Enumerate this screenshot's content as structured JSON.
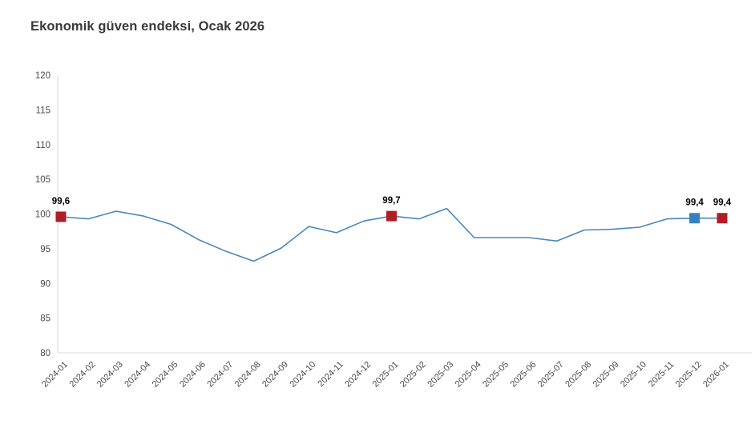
{
  "title": "Ekonomik güven endeksi, Ocak 2026",
  "chart_data": {
    "type": "line",
    "title": "Ekonomik güven endeksi, Ocak 2026",
    "x": [
      "2024-01",
      "2024-02",
      "2024-03",
      "2024-04",
      "2024-05",
      "2024-06",
      "2024-07",
      "2024-08",
      "2024-09",
      "2024-10",
      "2024-11",
      "2024-12",
      "2025-01",
      "2025-02",
      "2025-03",
      "2025-04",
      "2025-05",
      "2025-06",
      "2025-07",
      "2025-08",
      "2025-09",
      "2025-10",
      "2025-11",
      "2025-12",
      "2026-01"
    ],
    "series": [
      {
        "name": "Ekonomik güven endeksi",
        "values": [
          99.6,
          99.3,
          100.4,
          99.7,
          98.5,
          96.3,
          94.6,
          93.2,
          95.1,
          98.2,
          97.3,
          99.0,
          99.7,
          99.3,
          100.8,
          96.6,
          96.6,
          96.6,
          96.1,
          97.7,
          97.8,
          98.1,
          99.3,
          99.4,
          99.4
        ]
      }
    ],
    "ylim": [
      80,
      120
    ],
    "ytick_step": 5,
    "yticks": [
      80,
      85,
      90,
      95,
      100,
      105,
      110,
      115,
      120
    ],
    "grid": false,
    "legend": "none",
    "xlabel": "",
    "ylabel": "",
    "annotations": [
      {
        "x": "2024-01",
        "value": 99.6,
        "label": "99,6",
        "marker": "red"
      },
      {
        "x": "2025-01",
        "value": 99.7,
        "label": "99,7",
        "marker": "red"
      },
      {
        "x": "2025-12",
        "value": 99.4,
        "label": "99,4",
        "marker": "blue"
      },
      {
        "x": "2026-01",
        "value": 99.4,
        "label": "99,4",
        "marker": "red"
      }
    ],
    "colors": {
      "line": "#4a87b9",
      "marker_red": "#b01e23",
      "marker_blue": "#377fc0",
      "axis": "#d9d9d9",
      "tick_text": "#4a4a4a",
      "data_label_text": "#000000",
      "title_text": "#3a3a3a"
    }
  }
}
